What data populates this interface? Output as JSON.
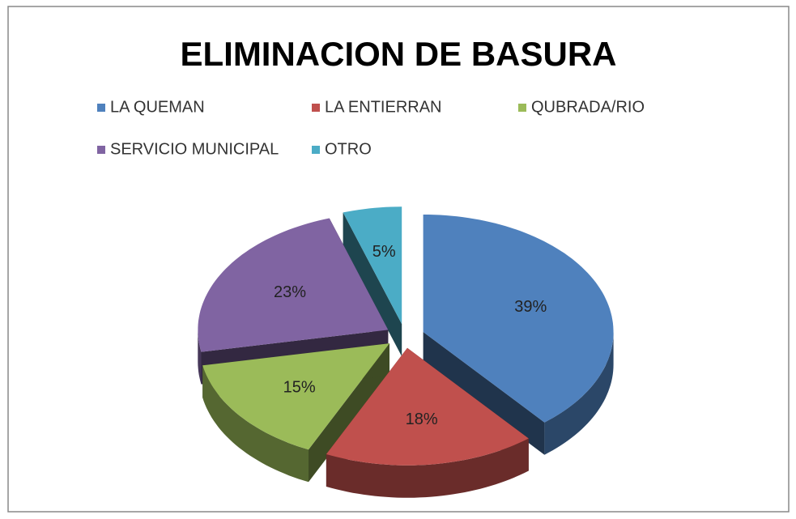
{
  "chart_data": {
    "type": "pie",
    "title": "ELIMINACION DE BASURA",
    "categories": [
      "LA QUEMAN",
      "LA ENTIERRAN",
      "QUBRADA/RIO",
      "SERVICIO MUNICIPAL",
      "OTRO"
    ],
    "values": [
      39,
      18,
      15,
      23,
      5
    ],
    "value_labels": [
      "39%",
      "18%",
      "15%",
      "23%",
      "5%"
    ],
    "colors": [
      "#4f81bd",
      "#c0504d",
      "#9bbb59",
      "#8064a2",
      "#4bacc6"
    ],
    "legend": "top"
  }
}
